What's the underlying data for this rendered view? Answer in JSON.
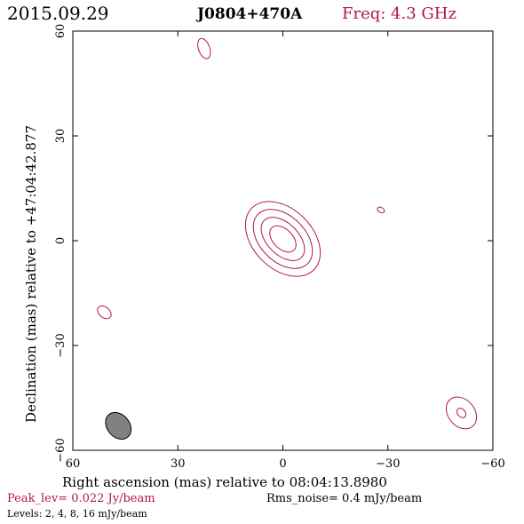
{
  "header": {
    "date": "2015.09.29",
    "source": "J0804+470A",
    "freq": "Freq: 4.3 GHz"
  },
  "footer": {
    "peak": "Peak_lev=  0.022 Jy/beam",
    "noise": "Rms_noise=  0.4 mJy/beam",
    "levels": "Levels:   2,   4,   8,  16 mJy/beam"
  },
  "colors": {
    "accent": "#b0174a",
    "beam_fill": "#808080",
    "axis": "#000000"
  },
  "chart_data": {
    "type": "contour",
    "xlabel": "Right ascension (mas) relative to 08:04:13.8980",
    "ylabel": "Declination (mas) relative to +47:04:42.877",
    "xlim": [
      60,
      -60
    ],
    "ylim": [
      -60,
      60
    ],
    "x_ticks": [
      60,
      30,
      0,
      -30,
      -60
    ],
    "y_ticks": [
      -60,
      -30,
      0,
      30,
      60
    ],
    "x_tick_labels": [
      "60",
      "30",
      "0",
      "−30",
      "−60"
    ],
    "y_tick_labels": [
      "−60",
      "−30",
      "0",
      "30",
      "60"
    ],
    "contour_levels_mJy": [
      2,
      4,
      8,
      16
    ],
    "peak_Jy_per_beam": 0.022,
    "rms_noise_mJy_per_beam": 0.4,
    "components": [
      {
        "name": "core",
        "x": 0,
        "y": 0.5,
        "rx_levels": [
          4.5,
          7.5,
          10,
          12.5
        ],
        "ry_levels": [
          2.8,
          4.5,
          6.5,
          8.5
        ],
        "angle": 45
      },
      {
        "name": "n-blob",
        "x": 22.5,
        "y": 55,
        "rx_levels": [
          3
        ],
        "ry_levels": [
          1.6
        ],
        "angle": 70
      },
      {
        "name": "e-blob",
        "x": 51,
        "y": -20.5,
        "rx_levels": [
          2.2
        ],
        "ry_levels": [
          1.5
        ],
        "angle": 40
      },
      {
        "name": "w-dot",
        "x": -28,
        "y": 8.8,
        "rx_levels": [
          1.1
        ],
        "ry_levels": [
          0.7
        ],
        "angle": 30
      },
      {
        "name": "sw-blob",
        "x": -51,
        "y": -49.3,
        "rx_levels": [
          1.5,
          5
        ],
        "ry_levels": [
          1.1,
          3.8
        ],
        "angle": 50
      }
    ],
    "beam": {
      "x": 47,
      "y": -53,
      "rx": 4.2,
      "ry": 3.2,
      "angle": 50
    }
  }
}
